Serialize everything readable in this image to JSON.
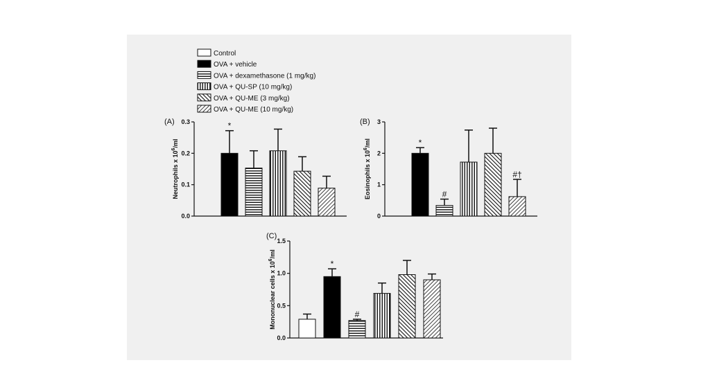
{
  "legend": {
    "entries": [
      {
        "label": "Control",
        "pattern": "white"
      },
      {
        "label": "OVA + vehicle",
        "pattern": "black"
      },
      {
        "label": "OVA + dexamethasone (1 mg/kg)",
        "pattern": "hlines"
      },
      {
        "label": "OVA + QU-SP (10 mg/kg)",
        "pattern": "vlines"
      },
      {
        "label": "OVA + QU-ME (3 mg/kg)",
        "pattern": "diag-back"
      },
      {
        "label": "OVA + QU-ME (10 mg/kg)",
        "pattern": "diag-fwd"
      }
    ]
  },
  "chart_data": [
    {
      "type": "bar",
      "panel_label": "(A)",
      "ylabel_main": "Neutrophils x 10",
      "ylabel_sup": "6",
      "ylabel_tail": "/ml",
      "ylim": [
        0,
        0.3
      ],
      "yticks": [
        "0.0",
        "0.1",
        "0.2",
        "0.3"
      ],
      "grid": false,
      "categories": [
        "OVA + vehicle",
        "OVA + dexamethasone (1 mg/kg)",
        "OVA + QU-SP (10 mg/kg)",
        "OVA + QU-ME (3 mg/kg)",
        "OVA + QU-ME (10 mg/kg)"
      ],
      "patterns": [
        "black",
        "hlines",
        "vlines",
        "diag-back",
        "diag-fwd"
      ],
      "values": [
        0.2,
        0.153,
        0.208,
        0.143,
        0.089
      ],
      "errors": [
        0.072,
        0.055,
        0.069,
        0.046,
        0.038
      ],
      "annotations": [
        "*",
        "",
        "",
        "",
        ""
      ]
    },
    {
      "type": "bar",
      "panel_label": "(B)",
      "ylabel_main": "Eosinophils x 10",
      "ylabel_sup": "6",
      "ylabel_tail": "/ml",
      "ylim": [
        0,
        3
      ],
      "yticks": [
        "0",
        "1",
        "2",
        "3"
      ],
      "grid": false,
      "categories": [
        "OVA + vehicle",
        "OVA + dexamethasone (1 mg/kg)",
        "OVA + QU-SP (10 mg/kg)",
        "OVA + QU-ME (3 mg/kg)",
        "OVA + QU-ME (10 mg/kg)"
      ],
      "patterns": [
        "black",
        "hlines",
        "vlines",
        "diag-back",
        "diag-fwd"
      ],
      "values": [
        2.0,
        0.34,
        1.72,
        2.0,
        0.62
      ],
      "errors": [
        0.18,
        0.2,
        1.02,
        0.8,
        0.55
      ],
      "annotations": [
        "*",
        "#",
        "",
        "",
        "#†"
      ]
    },
    {
      "type": "bar",
      "panel_label": "(C)",
      "ylabel_main": "Mononuclear cells x 10",
      "ylabel_sup": "6",
      "ylabel_tail": "/ml",
      "ylim": [
        0,
        1.5
      ],
      "yticks": [
        "0.0",
        "0.5",
        "1.0",
        "1.5"
      ],
      "grid": false,
      "categories": [
        "Control",
        "OVA + vehicle",
        "OVA + dexamethasone (1 mg/kg)",
        "OVA + QU-SP (10 mg/kg)",
        "OVA + QU-ME (3 mg/kg)",
        "OVA + QU-ME (10 mg/kg)"
      ],
      "patterns": [
        "white",
        "black",
        "hlines",
        "vlines",
        "diag-back",
        "diag-fwd"
      ],
      "values": [
        0.29,
        0.95,
        0.27,
        0.69,
        0.98,
        0.9
      ],
      "errors": [
        0.08,
        0.12,
        0.02,
        0.16,
        0.22,
        0.09
      ],
      "annotations": [
        "",
        "*",
        "#",
        "",
        "",
        ""
      ]
    }
  ]
}
